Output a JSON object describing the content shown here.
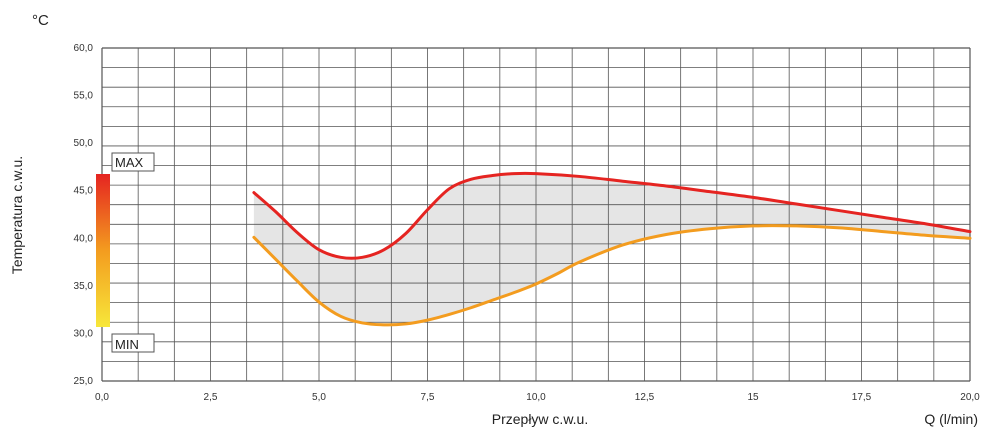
{
  "chart_data": {
    "type": "line",
    "y_unit": "°C",
    "ylabel": "Temperatura c.w.u.",
    "xlabel": "Przepływ c.w.u.",
    "x_unit_label": "Q (l/min)",
    "xlim": [
      0,
      20
    ],
    "ylim": [
      25,
      60
    ],
    "grid": true,
    "x_ticks": [
      "0,0",
      "2,5",
      "5,0",
      "7,5",
      "10,0",
      "12,5",
      "15",
      "17,5",
      "20,0"
    ],
    "y_ticks": [
      "25,0",
      "30,0",
      "35,0",
      "40,0",
      "45,0",
      "50,0",
      "55,0",
      "60,0"
    ],
    "scale_labels": {
      "max": "MAX",
      "min": "MIN"
    },
    "series": [
      {
        "color": "#e52421",
        "x": [
          3.5,
          4.0,
          4.5,
          5.0,
          5.5,
          6.0,
          6.5,
          7.0,
          7.5,
          8.0,
          8.5,
          9.0,
          9.5,
          10.0,
          11.0,
          12.0,
          13.0,
          14.0,
          15.0,
          16.0,
          17.0,
          18.0,
          19.0,
          20.0
        ],
        "y": [
          44.8,
          42.8,
          40.6,
          38.8,
          38.0,
          38.0,
          38.8,
          40.5,
          43.0,
          45.2,
          46.2,
          46.6,
          46.8,
          46.8,
          46.5,
          46.0,
          45.5,
          44.9,
          44.3,
          43.6,
          42.9,
          42.2,
          41.5,
          40.7
        ]
      },
      {
        "color": "#f39c1f",
        "x": [
          3.5,
          4.0,
          4.5,
          5.0,
          5.5,
          6.0,
          6.5,
          7.0,
          7.5,
          8.0,
          8.5,
          9.0,
          9.5,
          10.0,
          10.5,
          11.0,
          12.0,
          13.0,
          14.0,
          15.0,
          16.0,
          17.0,
          18.0,
          19.0,
          20.0
        ],
        "y": [
          40.1,
          37.8,
          35.5,
          33.3,
          31.8,
          31.1,
          30.9,
          31.0,
          31.4,
          32.0,
          32.7,
          33.5,
          34.3,
          35.2,
          36.3,
          37.5,
          39.3,
          40.4,
          41.0,
          41.3,
          41.3,
          41.1,
          40.7,
          40.3,
          40.0
        ]
      }
    ],
    "colors": {
      "fill": "#e5e5e5",
      "grid": "#555555",
      "gradient_top": "#e52421",
      "gradient_mid": "#f39c1f",
      "gradient_bottom": "#f7e73a"
    }
  }
}
